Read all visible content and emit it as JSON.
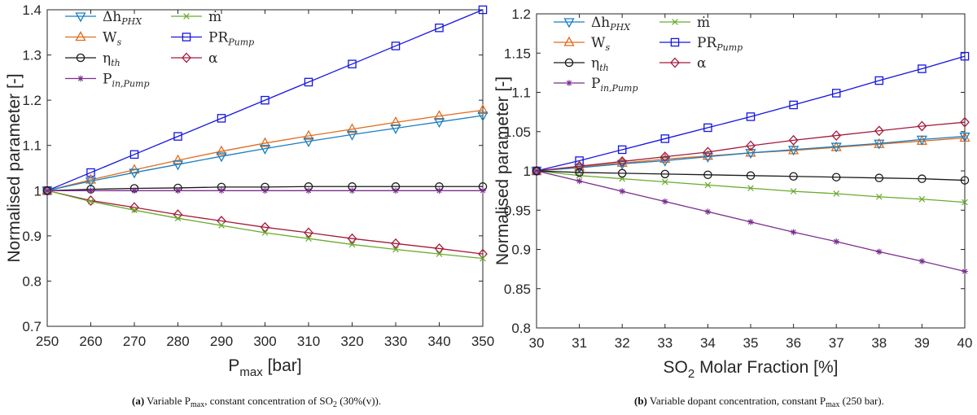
{
  "colors": {
    "dh_phx": "#1a7fbf",
    "mdot": "#6aab2e",
    "ws": "#e06c1e",
    "pr_pump": "#1515e0",
    "eta_th": "#1a1a1a",
    "alpha": "#a31b3c",
    "p_in_pump": "#7b2d8e"
  },
  "chart_data": [
    {
      "type": "line",
      "title": "",
      "xlabel": {
        "main": "P",
        "sub": "max",
        "rest": " [bar]"
      },
      "ylabel": "Normalised parameter [-]",
      "xlim": [
        250,
        350
      ],
      "ylim": [
        0.7,
        1.4
      ],
      "xticks": [
        "250",
        "260",
        "270",
        "280",
        "290",
        "300",
        "310",
        "320",
        "330",
        "340",
        "350"
      ],
      "yticks": [
        "0.7",
        "0.8",
        "0.9",
        "1",
        "1.1",
        "1.2",
        "1.3",
        "1.4"
      ],
      "grid": false,
      "legend_position": "top-left",
      "x": [
        250,
        260,
        270,
        280,
        290,
        300,
        310,
        320,
        330,
        340,
        350
      ],
      "series": [
        {
          "key": "dh_phx",
          "name": "Δh",
          "name_sub": "PHX",
          "marker": "triangle-down",
          "values": [
            1.0,
            1.021,
            1.04,
            1.058,
            1.076,
            1.093,
            1.109,
            1.124,
            1.138,
            1.152,
            1.166
          ]
        },
        {
          "key": "mdot",
          "name": "ṁ",
          "name_sub": "",
          "marker": "x",
          "values": [
            1.0,
            0.976,
            0.957,
            0.939,
            0.923,
            0.907,
            0.894,
            0.881,
            0.87,
            0.86,
            0.85
          ]
        },
        {
          "key": "ws",
          "name": "W",
          "name_sub": "s",
          "marker": "triangle-up",
          "values": [
            1.0,
            1.024,
            1.046,
            1.067,
            1.087,
            1.105,
            1.121,
            1.136,
            1.151,
            1.165,
            1.178
          ]
        },
        {
          "key": "pr_pump",
          "name": "PR",
          "name_sub": "Pump",
          "marker": "square",
          "values": [
            1.0,
            1.04,
            1.08,
            1.12,
            1.16,
            1.2,
            1.24,
            1.28,
            1.32,
            1.36,
            1.4
          ]
        },
        {
          "key": "eta_th",
          "name": "η",
          "name_sub": "th",
          "marker": "circle",
          "values": [
            1.0,
            1.003,
            1.005,
            1.006,
            1.008,
            1.008,
            1.009,
            1.009,
            1.009,
            1.009,
            1.009
          ]
        },
        {
          "key": "alpha",
          "name": "α",
          "name_sub": "",
          "marker": "diamond",
          "values": [
            1.0,
            0.978,
            0.963,
            0.947,
            0.933,
            0.919,
            0.907,
            0.894,
            0.883,
            0.872,
            0.86
          ]
        },
        {
          "key": "p_in_pump",
          "name": "P",
          "name_sub": "in,Pump",
          "marker": "star",
          "values": [
            1.0,
            1.0,
            1.0,
            1.0,
            1.0,
            1.0,
            1.0,
            1.0,
            1.0,
            1.0,
            1.0
          ]
        }
      ]
    },
    {
      "type": "line",
      "title": "",
      "xlabel": {
        "main": "SO",
        "sub": "2",
        "rest": " Molar Fraction [%]"
      },
      "ylabel": "Normalised parameter [-]",
      "xlim": [
        30,
        40
      ],
      "ylim": [
        0.8,
        1.2
      ],
      "xticks": [
        "30",
        "31",
        "32",
        "33",
        "34",
        "35",
        "36",
        "37",
        "38",
        "39",
        "40"
      ],
      "yticks": [
        "0.8",
        "0.85",
        "0.9",
        "0.95",
        "1",
        "1.05",
        "1.1",
        "1.15",
        "1.2"
      ],
      "grid": false,
      "legend_position": "top-left",
      "x": [
        30,
        31,
        32,
        33,
        34,
        35,
        36,
        37,
        38,
        39,
        40
      ],
      "series": [
        {
          "key": "dh_phx",
          "name": "Δh",
          "name_sub": "PHX",
          "marker": "triangle-down",
          "values": [
            1.0,
            1.004,
            1.009,
            1.013,
            1.018,
            1.023,
            1.027,
            1.031,
            1.035,
            1.04,
            1.044
          ]
        },
        {
          "key": "mdot",
          "name": "ṁ",
          "name_sub": "",
          "marker": "x",
          "values": [
            1.0,
            0.994,
            0.99,
            0.986,
            0.982,
            0.978,
            0.974,
            0.971,
            0.967,
            0.964,
            0.96
          ]
        },
        {
          "key": "ws",
          "name": "W",
          "name_sub": "s",
          "marker": "triangle-up",
          "values": [
            1.0,
            1.005,
            1.01,
            1.015,
            1.019,
            1.023,
            1.026,
            1.03,
            1.034,
            1.038,
            1.042
          ]
        },
        {
          "key": "pr_pump",
          "name": "PR",
          "name_sub": "Pump",
          "marker": "square",
          "values": [
            1.0,
            1.013,
            1.027,
            1.041,
            1.055,
            1.069,
            1.084,
            1.099,
            1.115,
            1.13,
            1.146
          ]
        },
        {
          "key": "eta_th",
          "name": "η",
          "name_sub": "th",
          "marker": "circle",
          "values": [
            1.0,
            0.998,
            0.997,
            0.996,
            0.995,
            0.994,
            0.993,
            0.992,
            0.991,
            0.99,
            0.988
          ]
        },
        {
          "key": "alpha",
          "name": "α",
          "name_sub": "",
          "marker": "diamond",
          "values": [
            1.0,
            1.006,
            1.012,
            1.018,
            1.024,
            1.032,
            1.039,
            1.045,
            1.051,
            1.057,
            1.062
          ]
        },
        {
          "key": "p_in_pump",
          "name": "P",
          "name_sub": "in,Pump",
          "marker": "star",
          "values": [
            1.0,
            0.987,
            0.974,
            0.961,
            0.948,
            0.935,
            0.922,
            0.91,
            0.897,
            0.885,
            0.872
          ]
        }
      ]
    }
  ],
  "captions": [
    {
      "label": "(a)",
      "text_before": " Variable P",
      "sub1": "max",
      "text_middle": ", constant concentration of SO",
      "sub2": "2",
      "text_after": " (30%(v))."
    },
    {
      "label": "(b)",
      "text_before": " Variable dopant concentration, constant P",
      "sub1": "max",
      "text_middle": " (250 bar).",
      "sub2": "",
      "text_after": ""
    }
  ]
}
